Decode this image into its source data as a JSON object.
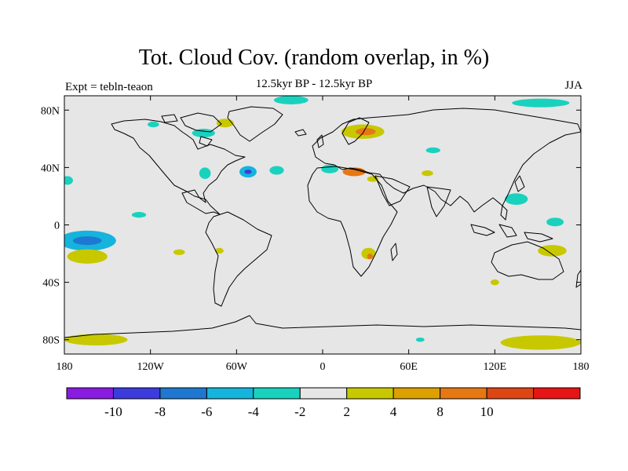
{
  "title": "Tot. Cloud Cov. (random overlap, in %)",
  "subtitle": "12.5kyr BP - 12.5kyr BP",
  "left_label": "Expt = tebln-teaon",
  "right_label": "JJA",
  "map": {
    "lon_range": [
      -180,
      180
    ],
    "lat_range": [
      -90,
      90
    ],
    "x_ticks": [
      {
        "lon": -180,
        "label": "180"
      },
      {
        "lon": -120,
        "label": "120W"
      },
      {
        "lon": -60,
        "label": "60W"
      },
      {
        "lon": 0,
        "label": "0"
      },
      {
        "lon": 60,
        "label": "60E"
      },
      {
        "lon": 120,
        "label": "120E"
      },
      {
        "lon": 180,
        "label": "180"
      }
    ],
    "y_ticks": [
      {
        "lat": 80,
        "label": "80N"
      },
      {
        "lat": 40,
        "label": "40N"
      },
      {
        "lat": 0,
        "label": "0"
      },
      {
        "lat": -40,
        "label": "40S"
      },
      {
        "lat": -80,
        "label": "80S"
      }
    ],
    "background_color": "#e6e6e6"
  },
  "colorbar": {
    "colors": [
      "#8a1be0",
      "#3c3cdc",
      "#1e78d2",
      "#14b4dc",
      "#19d2be",
      "#e6e6e6",
      "#c8c800",
      "#dca000",
      "#e67814",
      "#dc4614",
      "#e61414"
    ],
    "labels": [
      "-10",
      "-8",
      "-6",
      "-4",
      "-2",
      "2",
      "4",
      "8",
      "10"
    ]
  },
  "anomalies": [
    {
      "lon": -164,
      "lat": -11,
      "rx": 20,
      "ry": 7,
      "level": "-4"
    },
    {
      "lon": -164,
      "lat": -11,
      "rx": 10,
      "ry": 3,
      "level": "-6"
    },
    {
      "lon": -164,
      "lat": -22,
      "rx": 14,
      "ry": 5,
      "level": "4"
    },
    {
      "lon": -52,
      "lat": 37,
      "rx": 6,
      "ry": 4,
      "level": "-4"
    },
    {
      "lon": -52,
      "lat": 37,
      "rx": 2.5,
      "ry": 1.5,
      "level": "-8"
    },
    {
      "lon": -32,
      "lat": 38,
      "rx": 5,
      "ry": 3,
      "level": "-2"
    },
    {
      "lon": -82,
      "lat": 36,
      "rx": 4,
      "ry": 4,
      "level": "-2"
    },
    {
      "lon": -83,
      "lat": 64,
      "rx": 8,
      "ry": 3,
      "level": "-2"
    },
    {
      "lon": -68,
      "lat": 71,
      "rx": 6,
      "ry": 3,
      "level": "4"
    },
    {
      "lon": -22,
      "lat": 87,
      "rx": 12,
      "ry": 3,
      "level": "-2"
    },
    {
      "lon": 152,
      "lat": 85,
      "rx": 20,
      "ry": 3,
      "level": "-2"
    },
    {
      "lon": 28,
      "lat": 65,
      "rx": 15,
      "ry": 5,
      "level": "4"
    },
    {
      "lon": 30,
      "lat": 65,
      "rx": 7,
      "ry": 2.5,
      "level": "8"
    },
    {
      "lon": 5,
      "lat": 39,
      "rx": 6,
      "ry": 3,
      "level": "-2"
    },
    {
      "lon": 22,
      "lat": 37,
      "rx": 8,
      "ry": 3,
      "level": "8"
    },
    {
      "lon": 35,
      "lat": 32,
      "rx": 4,
      "ry": 2,
      "level": "4"
    },
    {
      "lon": 135,
      "lat": 18,
      "rx": 8,
      "ry": 4,
      "level": "-2"
    },
    {
      "lon": 162,
      "lat": 2,
      "rx": 6,
      "ry": 3,
      "level": "-2"
    },
    {
      "lon": -100,
      "lat": -19,
      "rx": 4,
      "ry": 2,
      "level": "4"
    },
    {
      "lon": -72,
      "lat": -18,
      "rx": 3,
      "ry": 2,
      "level": "4"
    },
    {
      "lon": 32,
      "lat": -20,
      "rx": 5,
      "ry": 4,
      "level": "4"
    },
    {
      "lon": 33,
      "lat": -22,
      "rx": 2,
      "ry": 2,
      "level": "8"
    },
    {
      "lon": 73,
      "lat": 36,
      "rx": 4,
      "ry": 2,
      "level": "4"
    },
    {
      "lon": 160,
      "lat": -18,
      "rx": 10,
      "ry": 4,
      "level": "4"
    },
    {
      "lon": 120,
      "lat": -40,
      "rx": 3,
      "ry": 2,
      "level": "4"
    },
    {
      "lon": -158,
      "lat": -80,
      "rx": 22,
      "ry": 4,
      "level": "4"
    },
    {
      "lon": 152,
      "lat": -82,
      "rx": 28,
      "ry": 5,
      "level": "4"
    },
    {
      "lon": 68,
      "lat": -80,
      "rx": 3,
      "ry": 1.5,
      "level": "-2"
    },
    {
      "lon": -178,
      "lat": 31,
      "rx": 4,
      "ry": 3,
      "level": "-2"
    },
    {
      "lon": -128,
      "lat": 7,
      "rx": 5,
      "ry": 2,
      "level": "-2"
    },
    {
      "lon": 77,
      "lat": 52,
      "rx": 5,
      "ry": 2,
      "level": "-2"
    },
    {
      "lon": -118,
      "lat": 70,
      "rx": 4,
      "ry": 2,
      "level": "-2"
    }
  ]
}
